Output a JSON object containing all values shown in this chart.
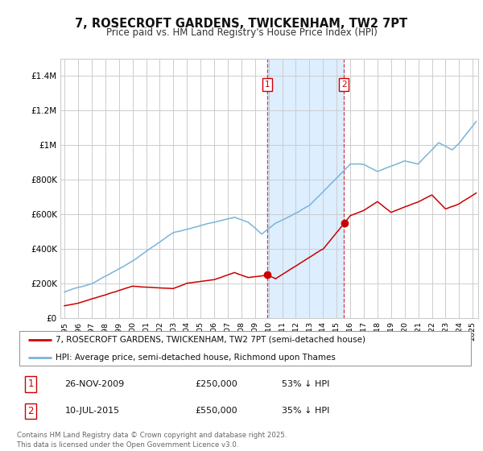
{
  "title": "7, ROSECROFT GARDENS, TWICKENHAM, TW2 7PT",
  "subtitle": "Price paid vs. HM Land Registry's House Price Index (HPI)",
  "sale1_x": 2009.917,
  "sale1_price": 250000,
  "sale2_x": 2015.542,
  "sale2_price": 550000,
  "property_color": "#cc0000",
  "hpi_color": "#7ab4d8",
  "shade_color": "#ddeeff",
  "grid_color": "#cccccc",
  "legend_property": "7, ROSECROFT GARDENS, TWICKENHAM, TW2 7PT (semi-detached house)",
  "legend_hpi": "HPI: Average price, semi-detached house, Richmond upon Thames",
  "footer": "Contains HM Land Registry data © Crown copyright and database right 2025.\nThis data is licensed under the Open Government Licence v3.0.",
  "ylim": [
    0,
    1500000
  ],
  "yticks": [
    0,
    200000,
    400000,
    600000,
    800000,
    1000000,
    1200000,
    1400000
  ],
  "ytick_labels": [
    "£0",
    "£200K",
    "£400K",
    "£600K",
    "£800K",
    "£1M",
    "£1.2M",
    "£1.4M"
  ]
}
